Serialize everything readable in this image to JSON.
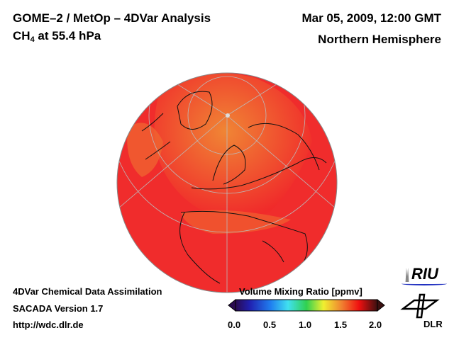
{
  "header": {
    "title_line1": "GOME–2 / MetOp – 4DVar Analysis",
    "species": "CH",
    "species_subscript": "4",
    "level": " at 55.4 hPa",
    "date": "Mar 05, 2009, 12:00 GMT",
    "region": "Northern Hemisphere"
  },
  "footer": {
    "line1": "4DVar Chemical Data Assimilation",
    "line2": "SACADA Version 1.7",
    "line3": "http://wdc.dlr.de"
  },
  "colorbar": {
    "title": "Volume Mixing Ratio [ppmv]",
    "ticks": [
      "0.0",
      "0.5",
      "1.0",
      "1.5",
      "2.0"
    ],
    "range": [
      0.0,
      2.0
    ]
  },
  "logos": {
    "riu": "RIU",
    "dlr": "DLR"
  },
  "colors": {
    "high": "#f02a2a",
    "mid": "#f07a30",
    "edge": "#d01818"
  }
}
